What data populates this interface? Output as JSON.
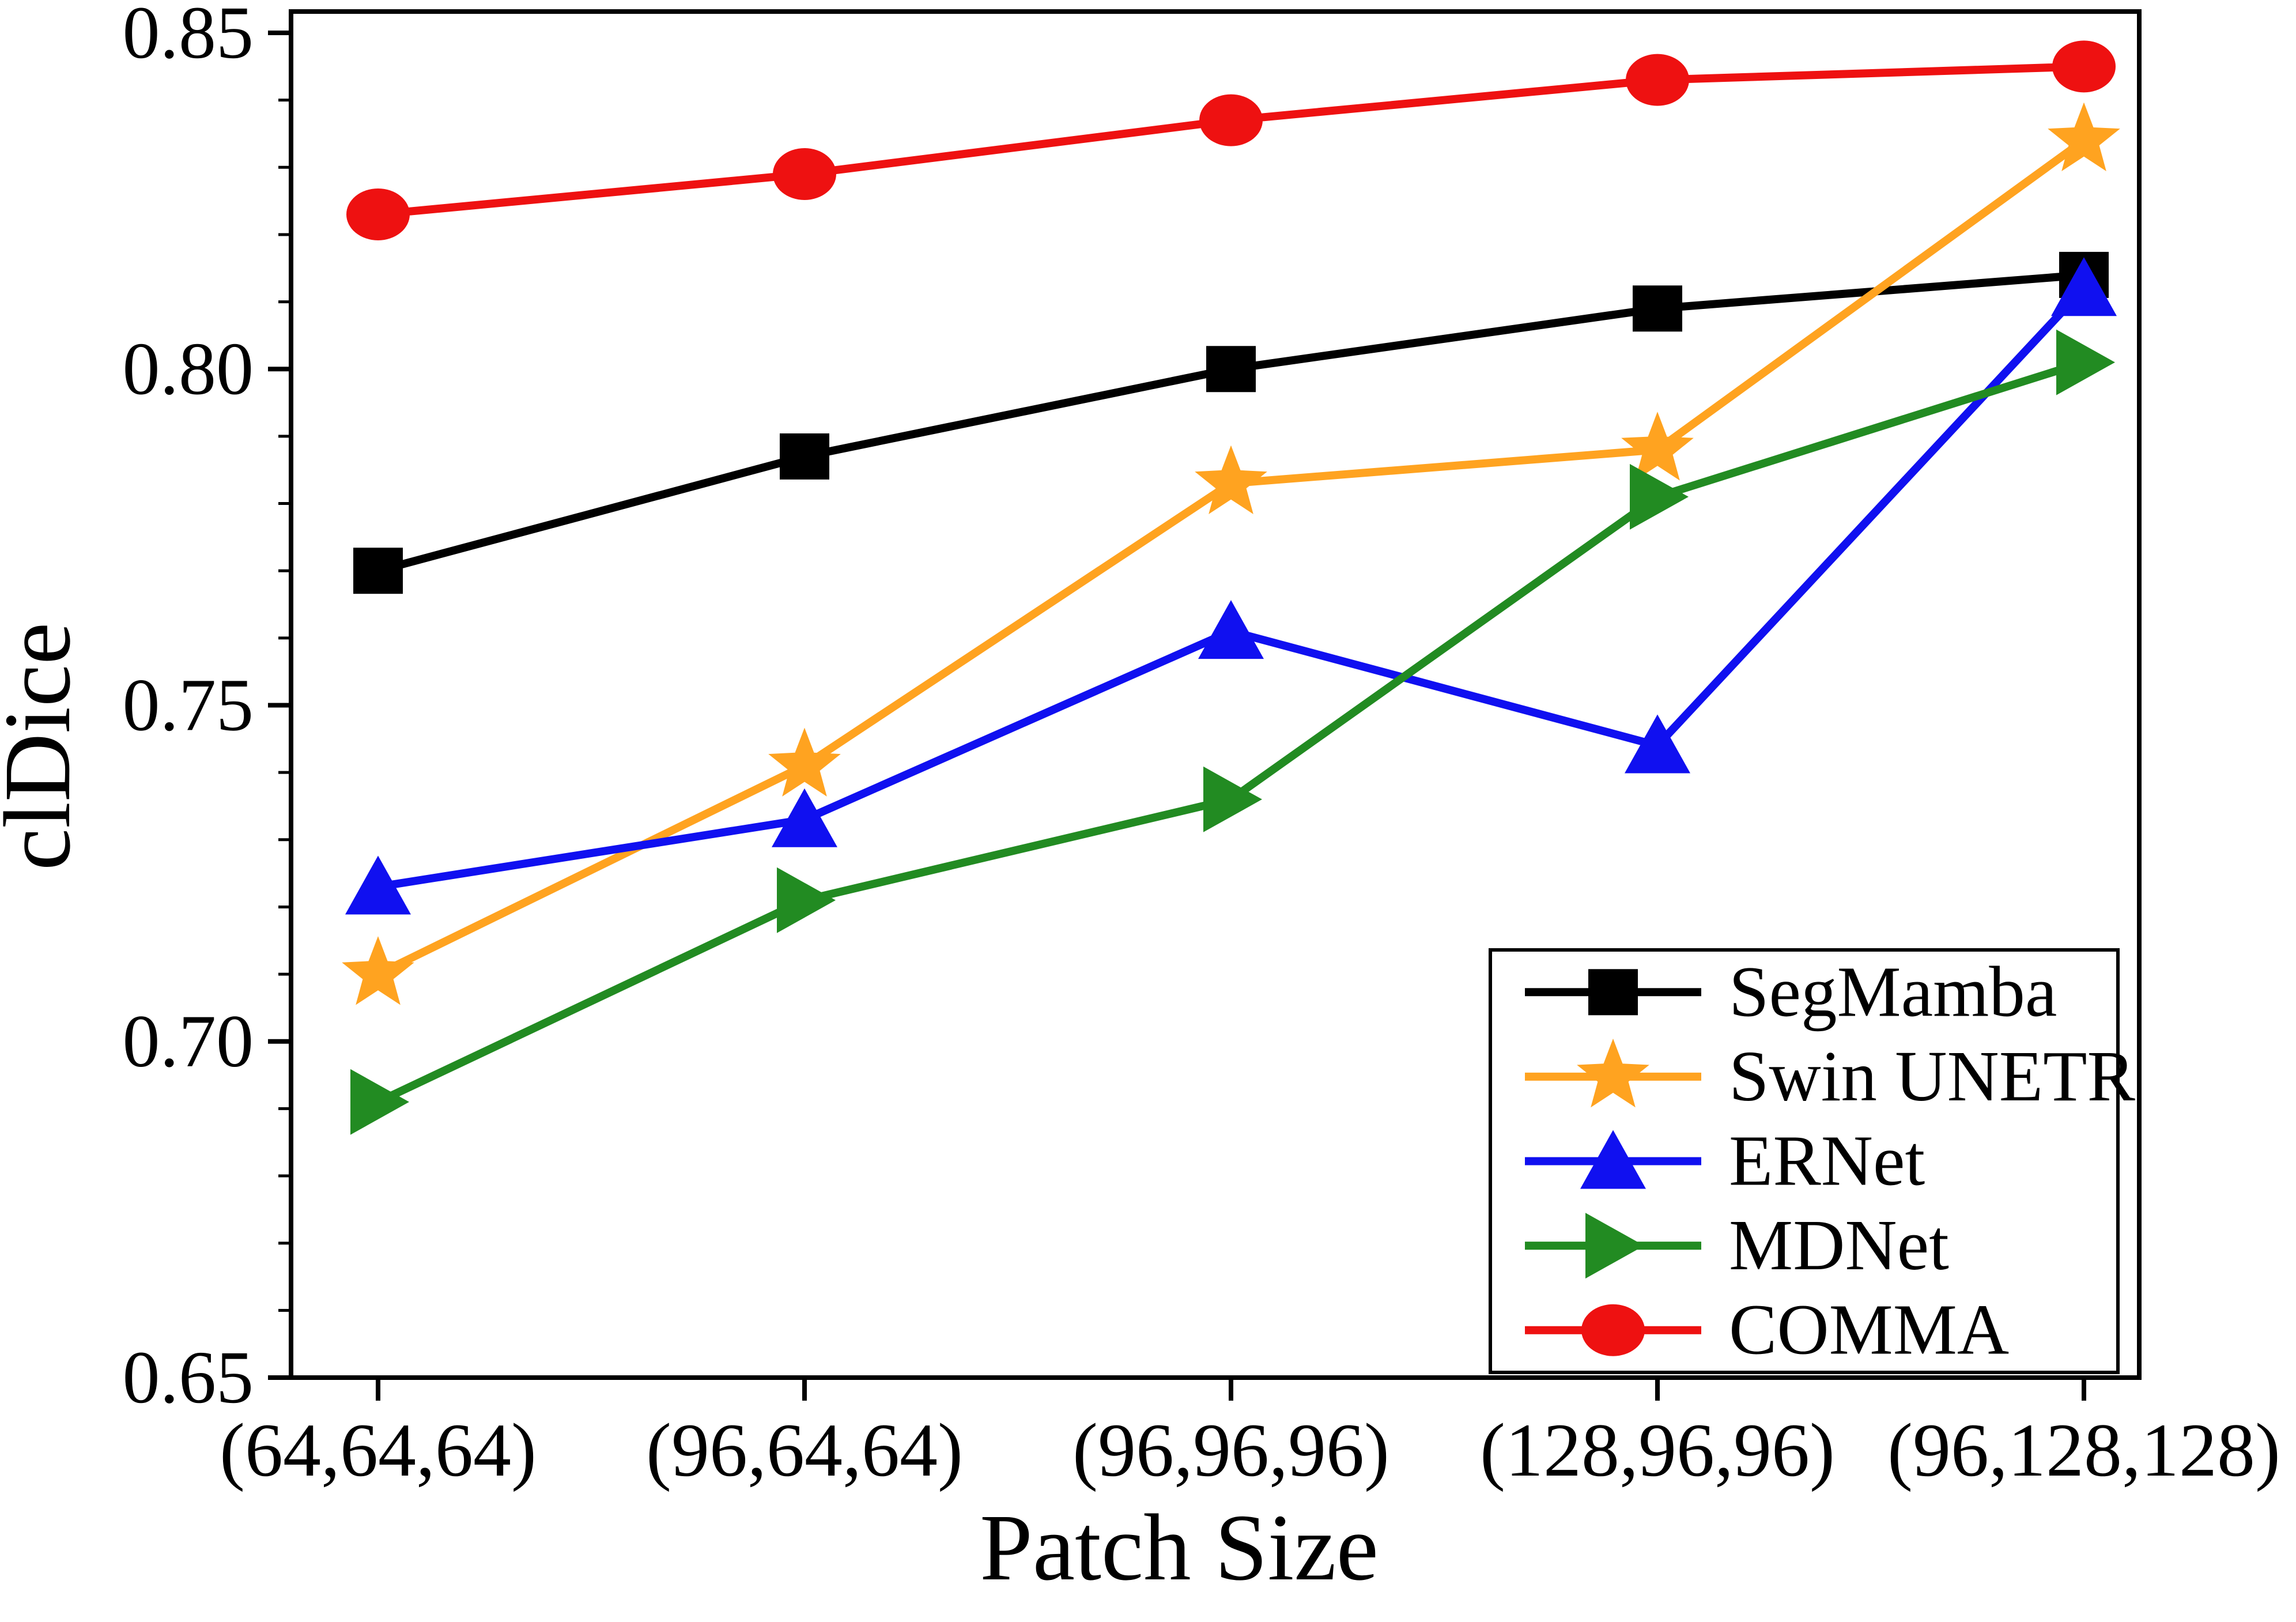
{
  "figure": {
    "background": "#ffffff",
    "text_color": "#000000"
  },
  "chart_data": {
    "type": "line",
    "title": "",
    "xlabel": "Patch Size",
    "ylabel": "clDice",
    "categories": [
      "(64,64,64)",
      "(96,64,64)",
      "(96,96,96)",
      "(128,96,96)",
      "(96,128,128)"
    ],
    "ylim": [
      0.65,
      0.85
    ],
    "yticks": [
      0.65,
      0.7,
      0.75,
      0.8,
      0.85
    ],
    "ytick_labels": [
      "0.65",
      "0.70",
      "0.75",
      "0.80",
      "0.85"
    ],
    "minor_ytick_step": 0.01,
    "grid": false,
    "legend_position": "inside lower-right",
    "series": [
      {
        "name": "SegMamba",
        "color": "#000000",
        "marker": "square",
        "values": [
          0.77,
          0.787,
          0.8,
          0.809,
          0.814
        ]
      },
      {
        "name": "Swin UNETR",
        "color": "#FFA320",
        "marker": "star",
        "values": [
          0.71,
          0.741,
          0.783,
          0.788,
          0.834
        ]
      },
      {
        "name": "ERNet",
        "color": "#1010F0",
        "marker": "triangle-up",
        "values": [
          0.723,
          0.733,
          0.761,
          0.744,
          0.812
        ]
      },
      {
        "name": "MDNet",
        "color": "#228B22",
        "marker": "triangle-right",
        "values": [
          0.691,
          0.721,
          0.736,
          0.781,
          0.801
        ]
      },
      {
        "name": "COMMA",
        "color": "#EE1111",
        "marker": "circle",
        "values": [
          0.823,
          0.829,
          0.837,
          0.843,
          0.845
        ]
      }
    ]
  }
}
